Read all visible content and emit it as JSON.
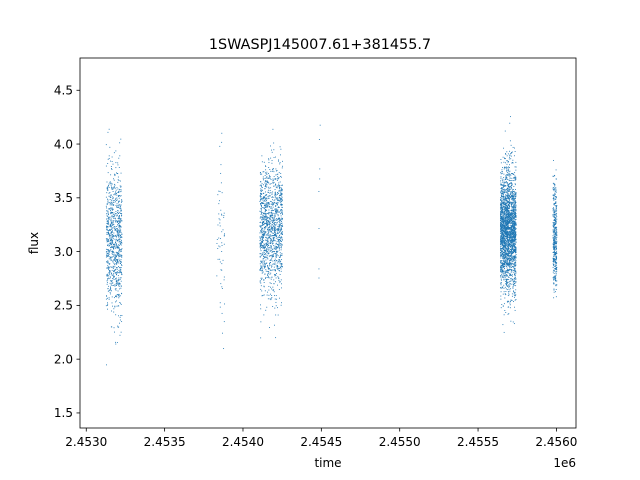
{
  "chart_data": {
    "type": "scatter",
    "title": "1SWASPJ145007.61+381455.7",
    "xlabel": "time",
    "ylabel": "flux",
    "x_offset_label": "1e6",
    "x_tick_labels": [
      "2.4530",
      "2.4535",
      "2.4540",
      "2.4545",
      "2.4550",
      "2.4555",
      "2.4560"
    ],
    "x_ticks": [
      2453000,
      2453500,
      2454000,
      2454500,
      2455000,
      2455500,
      2456000
    ],
    "y_ticks": [
      1.5,
      2.0,
      2.5,
      3.0,
      3.5,
      4.0,
      4.5
    ],
    "y_tick_labels": [
      "1.5",
      "2.0",
      "2.5",
      "3.0",
      "3.5",
      "4.0",
      "4.5"
    ],
    "xlim": [
      2452960,
      2456125
    ],
    "ylim": [
      1.36,
      4.8
    ],
    "grid": false,
    "marker_color": "#1f77b4",
    "clusters": [
      {
        "x_start": 2453125,
        "x_end": 2453225,
        "count": 900,
        "y_mean": 3.1,
        "y_sd": 0.33
      },
      {
        "x_start": 2453830,
        "x_end": 2453880,
        "count": 60,
        "y_mean": 3.15,
        "y_sd": 0.4
      },
      {
        "x_start": 2454105,
        "x_end": 2454250,
        "count": 1300,
        "y_mean": 3.2,
        "y_sd": 0.3
      },
      {
        "x_start": 2454480,
        "x_end": 2454490,
        "count": 8,
        "y_mean": 3.5,
        "y_sd": 0.5
      },
      {
        "x_start": 2455640,
        "x_end": 2455740,
        "count": 2500,
        "y_mean": 3.2,
        "y_sd": 0.28
      },
      {
        "x_start": 2455975,
        "x_end": 2456000,
        "count": 400,
        "y_mean": 3.15,
        "y_sd": 0.25
      }
    ]
  }
}
